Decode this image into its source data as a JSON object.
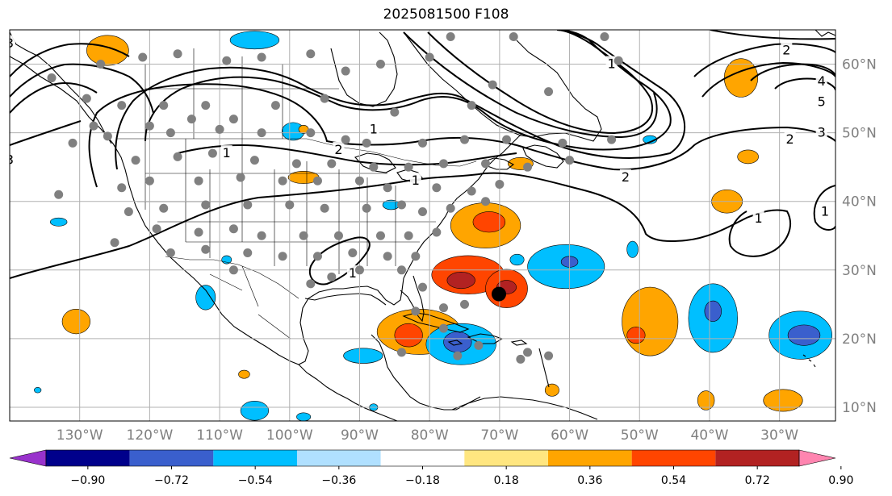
{
  "title": "2025081500 F108",
  "colors": {
    "land": "#ffffff",
    "coast": "#000000",
    "grid": "#b0b0b0",
    "station": "#808080",
    "storm": "#000000"
  },
  "map": {
    "lon_range": [
      -140,
      -22
    ],
    "lat_range": [
      8,
      65
    ],
    "x_ticks": [
      {
        "lon": -130,
        "label": "130°W"
      },
      {
        "lon": -120,
        "label": "120°W"
      },
      {
        "lon": -110,
        "label": "110°W"
      },
      {
        "lon": -100,
        "label": "100°W"
      },
      {
        "lon": -90,
        "label": "90°W"
      },
      {
        "lon": -80,
        "label": "80°W"
      },
      {
        "lon": -70,
        "label": "70°W"
      },
      {
        "lon": -60,
        "label": "60°W"
      },
      {
        "lon": -50,
        "label": "50°W"
      },
      {
        "lon": -40,
        "label": "40°W"
      },
      {
        "lon": -30,
        "label": "30°W"
      }
    ],
    "y_ticks": [
      {
        "lat": 60,
        "label": "60°N"
      },
      {
        "lat": 50,
        "label": "50°N"
      },
      {
        "lat": 40,
        "label": "40°N"
      },
      {
        "lat": 30,
        "label": "30°N"
      },
      {
        "lat": 20,
        "label": "20°N"
      },
      {
        "lat": 10,
        "label": "10°N"
      }
    ],
    "storm_center": {
      "lon": -70.1,
      "lat": 26.5
    }
  },
  "contour_labels": [
    {
      "text": "1",
      "lon": -109,
      "lat": 47
    },
    {
      "text": "2",
      "lon": -93,
      "lat": 47.5
    },
    {
      "text": "1",
      "lon": -82,
      "lat": 43
    },
    {
      "text": "2",
      "lon": -52,
      "lat": 43.5
    },
    {
      "text": "1",
      "lon": -54,
      "lat": 60
    },
    {
      "text": "2",
      "lon": -29,
      "lat": 62
    },
    {
      "text": "4",
      "lon": -24,
      "lat": 57.5
    },
    {
      "text": "5",
      "lon": -24,
      "lat": 54.5
    },
    {
      "text": "3",
      "lon": -24,
      "lat": 50
    },
    {
      "text": "2",
      "lon": -28.5,
      "lat": 49
    },
    {
      "text": "1",
      "lon": -33,
      "lat": 37.5
    },
    {
      "text": "1",
      "lon": -23.5,
      "lat": 38.5
    },
    {
      "text": "3",
      "lon": -140,
      "lat": 63
    },
    {
      "text": "3",
      "lon": -140,
      "lat": 46
    },
    {
      "text": "1",
      "lon": -88,
      "lat": 50.5
    },
    {
      "text": "1",
      "lon": -91,
      "lat": 29.5
    }
  ],
  "colorbar": {
    "ticks": [
      "−0.90",
      "−0.72",
      "−0.54",
      "−0.36",
      "−0.18",
      "0.18",
      "0.36",
      "0.54",
      "0.72",
      "0.90"
    ],
    "colors": [
      "#9932cc",
      "#00008b",
      "#3a5fcd",
      "#00bfff",
      "#b0e0ff",
      "#ffffff",
      "#ffe680",
      "#ffa500",
      "#ff4500",
      "#b22222",
      "#ff85b0"
    ]
  },
  "anomalies": [
    {
      "lon": -126,
      "lat": 62,
      "rx": 3,
      "ry": 2.2,
      "level": 0.45
    },
    {
      "lon": -105,
      "lat": 63.5,
      "rx": 3.5,
      "ry": 1.3,
      "level": -0.45
    },
    {
      "lon": -99.5,
      "lat": 50.2,
      "rx": 1.6,
      "ry": 1.3,
      "level": -0.45
    },
    {
      "lon": -98,
      "lat": 43.5,
      "rx": 2.2,
      "ry": 0.9,
      "level": 0.45
    },
    {
      "lon": -98,
      "lat": 50.5,
      "rx": 0.7,
      "ry": 0.6,
      "level": 0.45
    },
    {
      "lon": -133,
      "lat": 37,
      "rx": 1.2,
      "ry": 0.6,
      "level": -0.45
    },
    {
      "lon": -112,
      "lat": 26,
      "rx": 1.4,
      "ry": 1.8,
      "level": -0.45
    },
    {
      "lon": -109,
      "lat": 31.5,
      "rx": 0.7,
      "ry": 0.6,
      "level": -0.45
    },
    {
      "lon": -130.5,
      "lat": 22.5,
      "rx": 2,
      "ry": 1.8,
      "level": 0.45
    },
    {
      "lon": -89.5,
      "lat": 17.5,
      "rx": 2.8,
      "ry": 1.1,
      "level": -0.45
    },
    {
      "lon": -106.5,
      "lat": 14.8,
      "rx": 0.8,
      "ry": 0.6,
      "level": 0.45
    },
    {
      "lon": -85.5,
      "lat": 39.5,
      "rx": 1.2,
      "ry": 0.7,
      "level": -0.45
    },
    {
      "lon": -72,
      "lat": 36.5,
      "rx": 5,
      "ry": 3.3,
      "level": 0.45
    },
    {
      "lon": -71.5,
      "lat": 37,
      "rx": 2.3,
      "ry": 1.5,
      "level": 0.63
    },
    {
      "lon": -74.5,
      "lat": 29.3,
      "rx": 5.2,
      "ry": 2.8,
      "level": 0.63
    },
    {
      "lon": -75.5,
      "lat": 28.5,
      "rx": 2,
      "ry": 1.2,
      "level": 0.81
    },
    {
      "lon": -69,
      "lat": 27.3,
      "rx": 3,
      "ry": 2.8,
      "level": 0.63
    },
    {
      "lon": -69,
      "lat": 27.5,
      "rx": 1.4,
      "ry": 1,
      "level": 0.81
    },
    {
      "lon": -81.5,
      "lat": 21,
      "rx": 6,
      "ry": 3.3,
      "level": 0.45
    },
    {
      "lon": -83,
      "lat": 20.5,
      "rx": 2,
      "ry": 1.7,
      "level": 0.63
    },
    {
      "lon": -75.5,
      "lat": 19.2,
      "rx": 5,
      "ry": 3,
      "level": -0.45
    },
    {
      "lon": -76,
      "lat": 19.5,
      "rx": 2,
      "ry": 1.5,
      "level": -0.63
    },
    {
      "lon": -60.5,
      "lat": 30.5,
      "rx": 5.5,
      "ry": 3.2,
      "level": -0.45
    },
    {
      "lon": -60,
      "lat": 31.2,
      "rx": 1.2,
      "ry": 0.8,
      "level": -0.63
    },
    {
      "lon": -67.5,
      "lat": 31.5,
      "rx": 1,
      "ry": 0.8,
      "level": -0.45
    },
    {
      "lon": -51,
      "lat": 33,
      "rx": 0.8,
      "ry": 1.2,
      "level": -0.45
    },
    {
      "lon": -48.5,
      "lat": 22.5,
      "rx": 4,
      "ry": 5,
      "level": 0.45
    },
    {
      "lon": -50.5,
      "lat": 20.5,
      "rx": 1.3,
      "ry": 1.2,
      "level": 0.63
    },
    {
      "lon": -39.5,
      "lat": 23,
      "rx": 3.5,
      "ry": 5,
      "level": -0.45
    },
    {
      "lon": -39.5,
      "lat": 24,
      "rx": 1.2,
      "ry": 1.5,
      "level": -0.63
    },
    {
      "lon": -27,
      "lat": 20.5,
      "rx": 4.5,
      "ry": 3.5,
      "level": -0.45
    },
    {
      "lon": -26.5,
      "lat": 20.5,
      "rx": 2.3,
      "ry": 1.5,
      "level": -0.63
    },
    {
      "lon": -40.5,
      "lat": 11,
      "rx": 1.2,
      "ry": 1.4,
      "level": 0.45
    },
    {
      "lon": -29.5,
      "lat": 11,
      "rx": 2.8,
      "ry": 1.6,
      "level": 0.45
    },
    {
      "lon": -62.5,
      "lat": 12.5,
      "rx": 1,
      "ry": 0.9,
      "level": 0.45
    },
    {
      "lon": -37.5,
      "lat": 40,
      "rx": 2.2,
      "ry": 1.7,
      "level": 0.45
    },
    {
      "lon": -35.5,
      "lat": 58,
      "rx": 2.4,
      "ry": 2.8,
      "level": 0.45
    },
    {
      "lon": -34.5,
      "lat": 46.5,
      "rx": 1.5,
      "ry": 1,
      "level": 0.45
    },
    {
      "lon": -67,
      "lat": 45.5,
      "rx": 1.8,
      "ry": 0.9,
      "level": 0.45
    },
    {
      "lon": -48.5,
      "lat": 49,
      "rx": 1,
      "ry": 0.6,
      "level": -0.45
    },
    {
      "lon": -105,
      "lat": 9.5,
      "rx": 2,
      "ry": 1.4,
      "level": -0.45
    },
    {
      "lon": -98,
      "lat": 8.6,
      "rx": 1,
      "ry": 0.6,
      "level": -0.45
    },
    {
      "lon": -88,
      "lat": 10,
      "rx": 0.6,
      "ry": 0.5,
      "level": -0.45
    },
    {
      "lon": -136,
      "lat": 12.5,
      "rx": 0.5,
      "ry": 0.4,
      "level": -0.45
    }
  ],
  "stations": [
    [
      -127,
      60
    ],
    [
      -121,
      61
    ],
    [
      -116,
      61.5
    ],
    [
      -109,
      60.5
    ],
    [
      -104,
      61
    ],
    [
      -97,
      61.5
    ],
    [
      -92,
      59
    ],
    [
      -87,
      60
    ],
    [
      -77,
      64
    ],
    [
      -68,
      64
    ],
    [
      -55,
      64
    ],
    [
      -53,
      60.5
    ],
    [
      -63,
      56
    ],
    [
      -71,
      57
    ],
    [
      -92,
      49
    ],
    [
      -85,
      53
    ],
    [
      -74,
      54
    ],
    [
      -80,
      61
    ],
    [
      -134,
      58
    ],
    [
      -129,
      55
    ],
    [
      -124,
      54
    ],
    [
      -118,
      54
    ],
    [
      -112,
      54
    ],
    [
      -102,
      54
    ],
    [
      -95,
      55
    ],
    [
      -108,
      52
    ],
    [
      -114,
      52
    ],
    [
      -120,
      51
    ],
    [
      -128,
      51
    ],
    [
      -131,
      48.5
    ],
    [
      -126,
      49.5
    ],
    [
      -117,
      50
    ],
    [
      -110,
      50.5
    ],
    [
      -104,
      50
    ],
    [
      -97,
      50
    ],
    [
      -89,
      48.5
    ],
    [
      -81,
      48.5
    ],
    [
      -75,
      49
    ],
    [
      -69,
      49
    ],
    [
      -61,
      48.5
    ],
    [
      -54,
      49
    ],
    [
      -66,
      45
    ],
    [
      -60,
      46
    ],
    [
      -72,
      45.5
    ],
    [
      -78,
      45.5
    ],
    [
      -83,
      45
    ],
    [
      -88,
      45
    ],
    [
      -94,
      45.5
    ],
    [
      -99,
      45.5
    ],
    [
      -105,
      46
    ],
    [
      -111,
      47
    ],
    [
      -116,
      46.5
    ],
    [
      -122,
      46
    ],
    [
      -124,
      42
    ],
    [
      -120,
      43
    ],
    [
      -113,
      43
    ],
    [
      -107,
      43.5
    ],
    [
      -101,
      43
    ],
    [
      -96,
      43
    ],
    [
      -90,
      43
    ],
    [
      -86,
      42
    ],
    [
      -79,
      42
    ],
    [
      -74,
      41.5
    ],
    [
      -70,
      42.5
    ],
    [
      -123,
      38.5
    ],
    [
      -118,
      39
    ],
    [
      -112,
      39.5
    ],
    [
      -106,
      39.5
    ],
    [
      -100,
      39.5
    ],
    [
      -95,
      39
    ],
    [
      -89,
      39
    ],
    [
      -84,
      39.5
    ],
    [
      -81,
      38.5
    ],
    [
      -77,
      39
    ],
    [
      -72,
      40
    ],
    [
      -119,
      36
    ],
    [
      -113,
      35.5
    ],
    [
      -108,
      36
    ],
    [
      -104,
      35
    ],
    [
      -98,
      35
    ],
    [
      -93,
      35
    ],
    [
      -87,
      35
    ],
    [
      -83,
      35
    ],
    [
      -79,
      35.5
    ],
    [
      -112,
      33
    ],
    [
      -106,
      32.5
    ],
    [
      -101,
      32
    ],
    [
      -96,
      32
    ],
    [
      -91,
      32.5
    ],
    [
      -86,
      32
    ],
    [
      -82,
      32
    ],
    [
      -97,
      28
    ],
    [
      -94,
      29
    ],
    [
      -90,
      30
    ],
    [
      -84,
      30
    ],
    [
      -81,
      27.5
    ],
    [
      -82,
      24
    ],
    [
      -78,
      24.5
    ],
    [
      -75,
      25
    ],
    [
      -78,
      21.5
    ],
    [
      -73,
      19
    ],
    [
      -66,
      18
    ],
    [
      -63,
      17.5
    ],
    [
      -67,
      17
    ],
    [
      -76,
      17.5
    ],
    [
      -84,
      18
    ],
    [
      -108,
      30
    ],
    [
      -117,
      32.5
    ],
    [
      -125,
      34
    ],
    [
      -133,
      41
    ]
  ]
}
